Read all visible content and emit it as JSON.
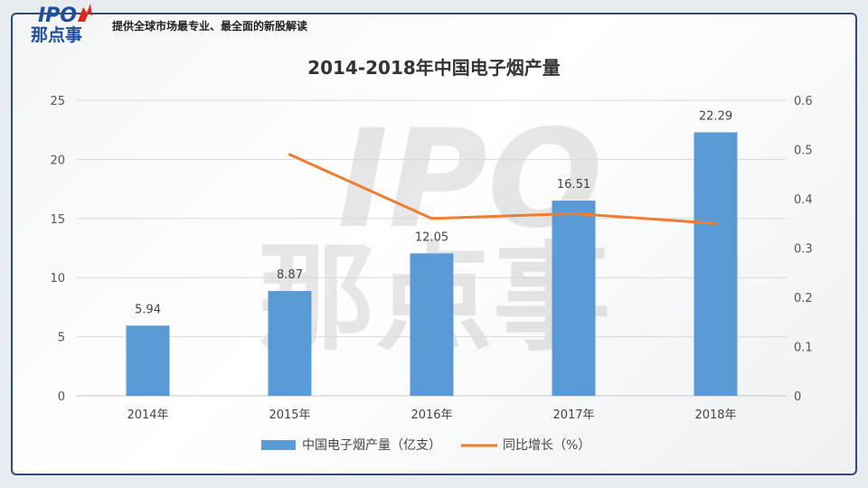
{
  "header": {
    "logo_line1": "IPO",
    "logo_line2": "那点事",
    "tagline": "提供全球市场最专业、最全面的新股解读"
  },
  "colors": {
    "bar": "#5b9bd5",
    "line": "#ed7d31",
    "frame": "#2d4a7a",
    "logo_blue": "#1f4e9c",
    "logo_red": "#e0251b"
  },
  "watermark": {
    "line1": "IPO",
    "line2": "那点事"
  },
  "chart_data": {
    "type": "bar",
    "title": "2014-2018年中国电子烟产量",
    "categories": [
      "2014年",
      "2015年",
      "2016年",
      "2017年",
      "2018年"
    ],
    "series": [
      {
        "name": "中国电子烟产量（亿支）",
        "type": "bar",
        "axis": "left",
        "values": [
          5.94,
          8.87,
          12.05,
          16.51,
          22.29
        ],
        "labels": [
          "5.94",
          "8.87",
          "12.05",
          "16.51",
          "22.29"
        ]
      },
      {
        "name": "同比增长（%）",
        "type": "line",
        "axis": "right",
        "values": [
          null,
          0.49,
          0.36,
          0.37,
          0.35
        ]
      }
    ],
    "ylim": [
      0,
      25
    ],
    "yticks": [
      "0",
      "5",
      "10",
      "15",
      "20",
      "25"
    ],
    "y2lim": [
      0,
      0.6
    ],
    "y2ticks": [
      "0",
      "0.1",
      "0.2",
      "0.3",
      "0.4",
      "0.5",
      "0.6"
    ],
    "grid": true,
    "legend_position": "bottom"
  }
}
